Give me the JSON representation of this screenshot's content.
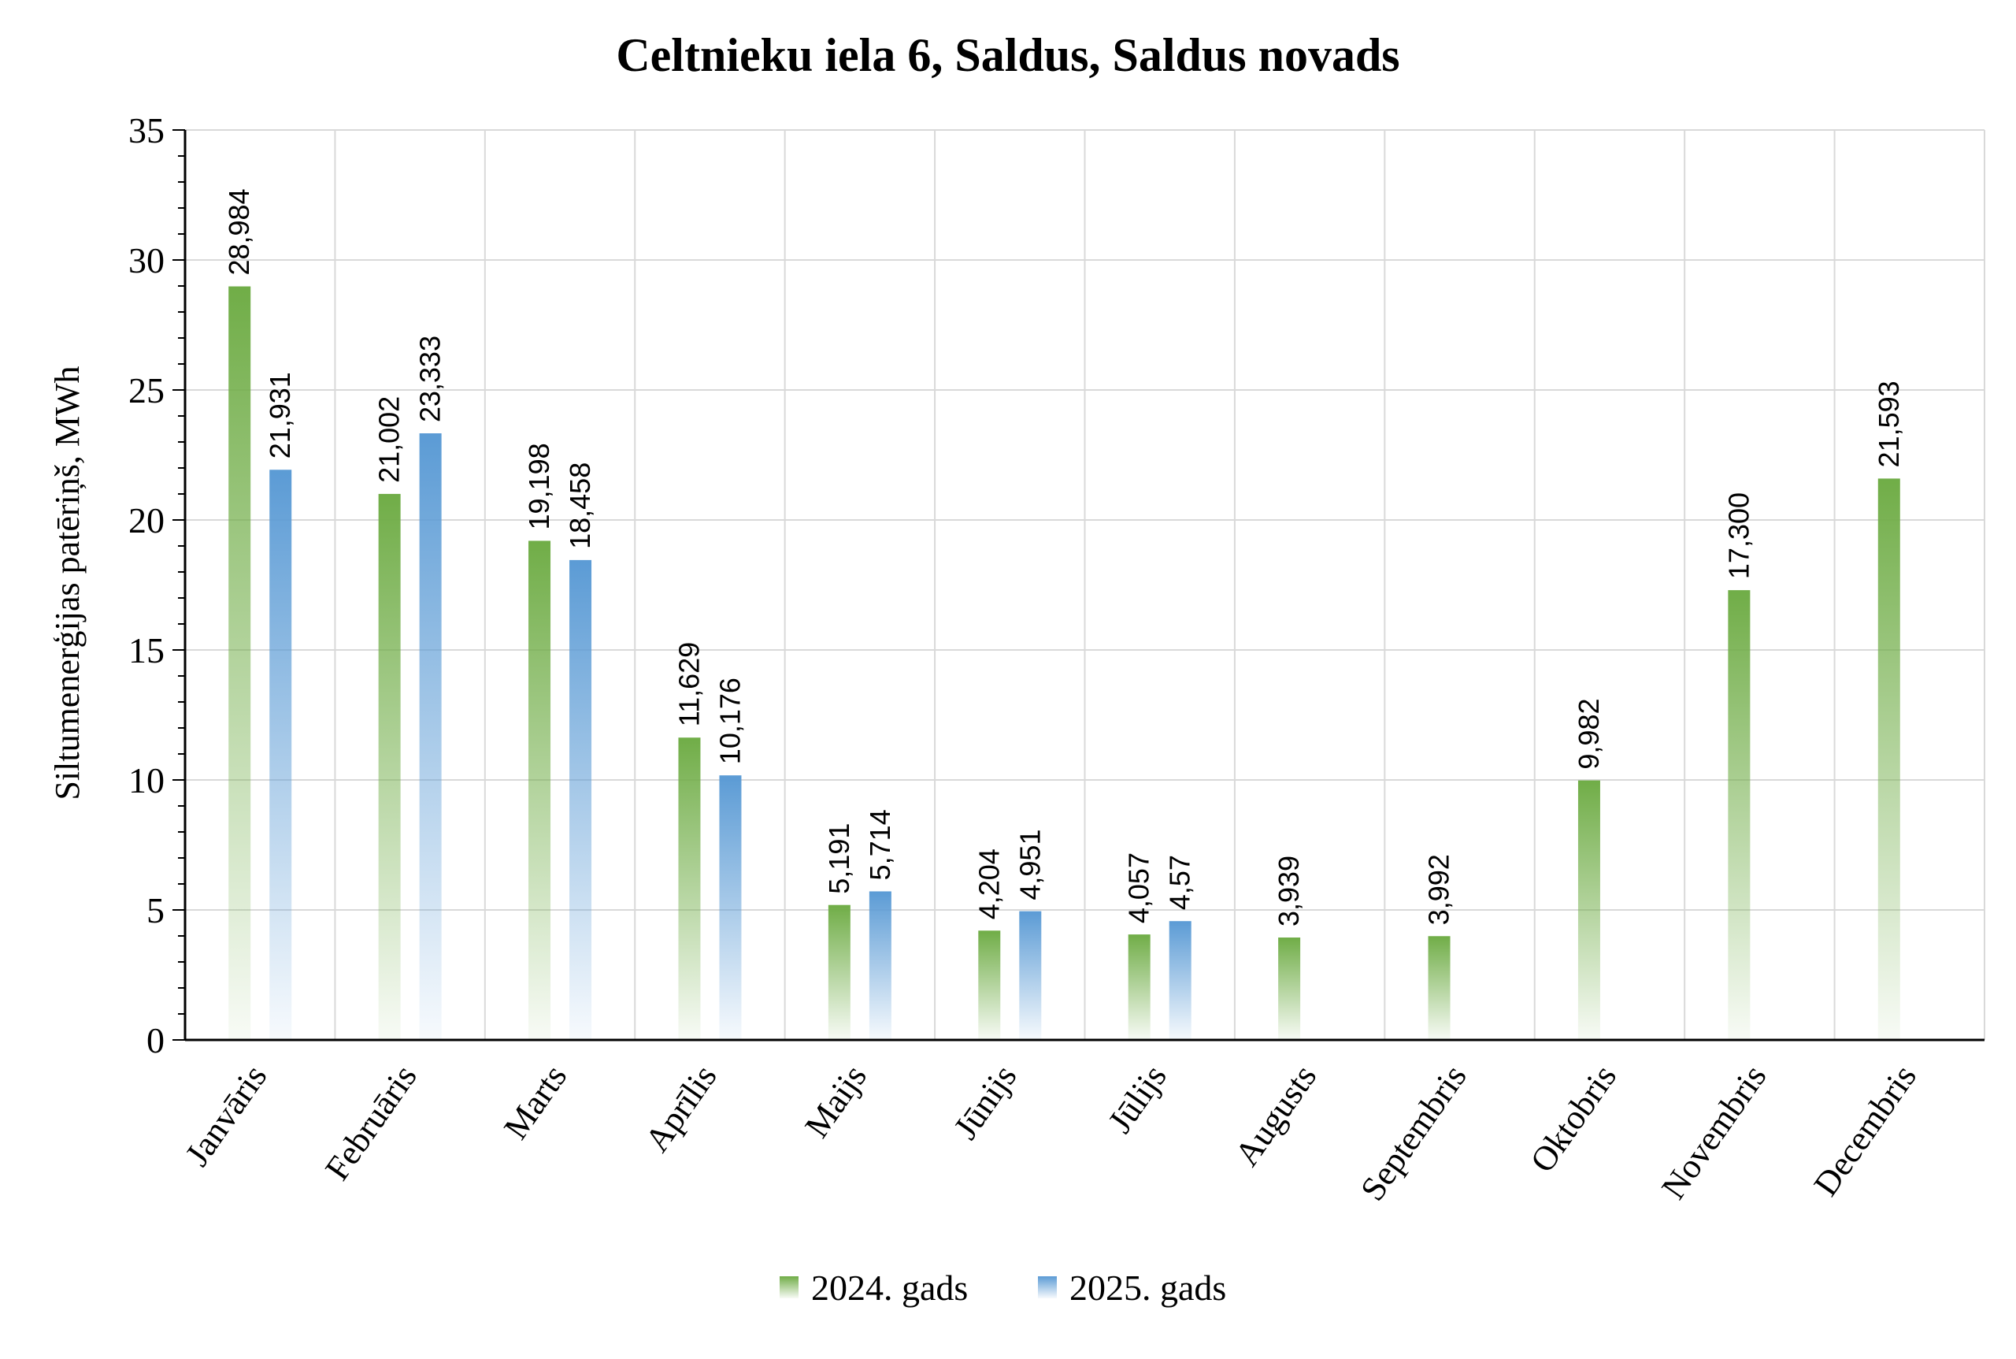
{
  "chart_data": {
    "type": "bar",
    "title": "Celtnieku iela 6, Saldus, Saldus novads",
    "ylabel": "Siltumenerģijas patēriņš, MWh",
    "xlabel": "",
    "ylim": [
      0,
      35
    ],
    "yticks": [
      "0",
      "5",
      "10",
      "15",
      "20",
      "25",
      "30",
      "35"
    ],
    "grid": true,
    "legend_position": "bottom",
    "categories": [
      "Janvāris",
      "Februāris",
      "Marts",
      "Aprīlis",
      "Maijs",
      "Jūnijs",
      "Jūlijs",
      "Augusts",
      "Septembris",
      "Oktobris",
      "Novembris",
      "Decembris"
    ],
    "series": [
      {
        "name": "2024. gads",
        "color": "#70ad47",
        "values": [
          28.984,
          21.002,
          19.198,
          11.629,
          5.191,
          4.204,
          4.057,
          3.939,
          3.992,
          9.982,
          17.3,
          21.593
        ],
        "labels": [
          "28,984",
          "21,002",
          "19,198",
          "11,629",
          "5,191",
          "4,204",
          "4,057",
          "3,939",
          "3,992",
          "9,982",
          "17,300",
          "21,593"
        ]
      },
      {
        "name": "2025. gads",
        "color": "#5b9bd5",
        "values": [
          21.931,
          23.333,
          18.458,
          10.176,
          5.714,
          4.951,
          4.57,
          null,
          null,
          null,
          null,
          null
        ],
        "labels": [
          "21,931",
          "23,333",
          "18,458",
          "10,176",
          "5,714",
          "4,951",
          "4,57",
          "",
          "",
          "",
          "",
          ""
        ]
      }
    ]
  }
}
